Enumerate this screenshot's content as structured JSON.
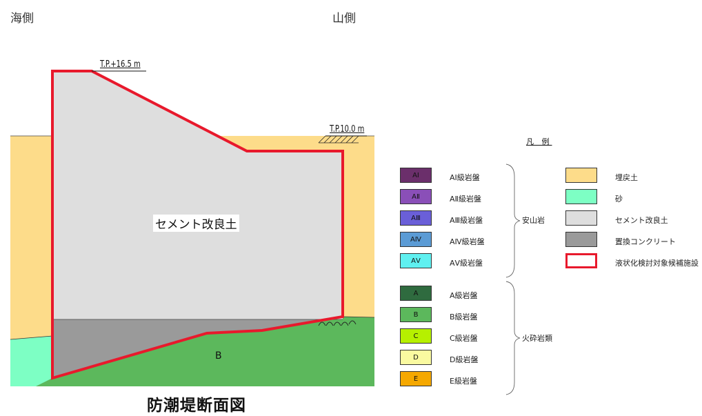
{
  "header": {
    "left_label": "海側",
    "right_label": "山側"
  },
  "section": {
    "elevation_top": "T.P.+16.5 m",
    "elevation_ground": "T.P.10.0 m",
    "zone_cement": "セメント改良土",
    "zone_b": "B",
    "title": "防潮堤断面図"
  },
  "legend": {
    "title": "凡 例",
    "rock_items": [
      {
        "code": "AⅠ",
        "label": "AⅠ級岩盤",
        "color": "#6b2f6b"
      },
      {
        "code": "AⅡ",
        "label": "AⅡ級岩盤",
        "color": "#8a4fb8"
      },
      {
        "code": "AⅢ",
        "label": "AⅢ級岩盤",
        "color": "#6a5fd8"
      },
      {
        "code": "AⅣ",
        "label": "AⅣ級岩盤",
        "color": "#5b9bd5"
      },
      {
        "code": "AⅤ",
        "label": "AⅤ級岩盤",
        "color": "#5ff0f0"
      }
    ],
    "rock_group": "安山岩",
    "tuff_items": [
      {
        "code": "A",
        "label": "A級岩盤",
        "color": "#2f6b3f"
      },
      {
        "code": "B",
        "label": "B級岩盤",
        "color": "#5cb85c"
      },
      {
        "code": "C",
        "label": "C級岩盤",
        "color": "#b6f000"
      },
      {
        "code": "D",
        "label": "D級岩盤",
        "color": "#fafaa0"
      },
      {
        "code": "E",
        "label": "E級岩盤",
        "color": "#f5a800"
      }
    ],
    "tuff_group": "火砕岩類",
    "material_items": [
      {
        "label": "埋戻土",
        "color": "#fddc8a",
        "kind": "fill"
      },
      {
        "label": "砂",
        "color": "#7dffc4",
        "kind": "fill"
      },
      {
        "label": "セメント改良土",
        "color": "#dedede",
        "kind": "fill"
      },
      {
        "label": "置換コンクリート",
        "color": "#9a9a9a",
        "kind": "fill"
      },
      {
        "label": "液状化検討対象候補施設",
        "color": "#e8192c",
        "kind": "outline"
      }
    ]
  }
}
